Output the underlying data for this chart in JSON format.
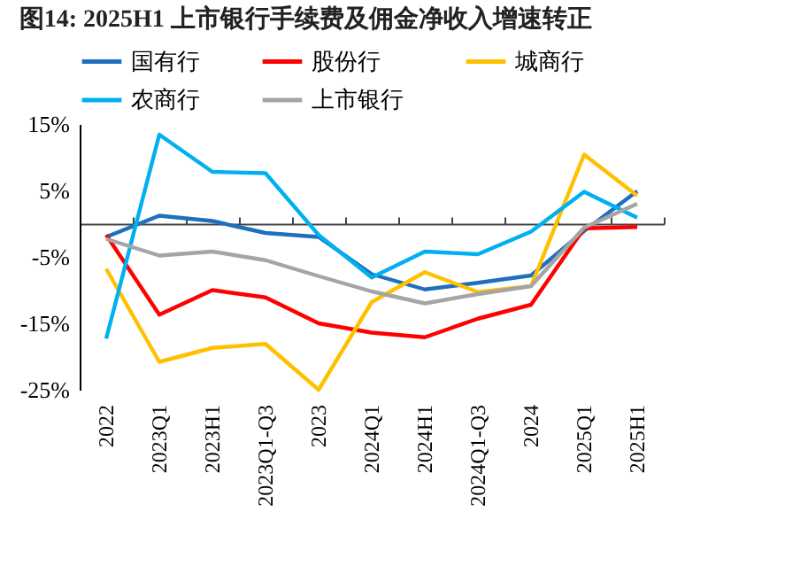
{
  "chart_data": {
    "type": "line",
    "title": "图14:  2025H1 上市银行手续费及佣金净收入增速转正",
    "categories": [
      "2022",
      "2023Q1",
      "2023H1",
      "2023Q1-Q3",
      "2023",
      "2024Q1",
      "2024H1",
      "2024Q1-Q3",
      "2024",
      "2025Q1",
      "2025H1"
    ],
    "series": [
      {
        "name": "国有行",
        "color": "#1f6fbf",
        "values": [
          -2,
          1.2,
          0.4,
          -1.4,
          -2,
          -7.6,
          -9.9,
          -8.9,
          -7.8,
          -1.1,
          4.9
        ]
      },
      {
        "name": "股份行",
        "color": "#ff0000",
        "values": [
          -1.7,
          -13.7,
          -10,
          -11.1,
          -15,
          -16.4,
          -17.1,
          -14.3,
          -12.2,
          -0.7,
          -0.5
        ]
      },
      {
        "name": "城商行",
        "color": "#ffc000",
        "values": [
          -6.8,
          -20.8,
          -18.7,
          -18.1,
          -25,
          -11.8,
          -7.3,
          -10.3,
          -9.4,
          10.4,
          4.2
        ]
      },
      {
        "name": "农商行",
        "color": "#00b0f0",
        "values": [
          -17.3,
          13.4,
          7.8,
          7.6,
          -1.7,
          -8.1,
          -4.2,
          -4.6,
          -1.2,
          4.8,
          0.9
        ]
      },
      {
        "name": "上市银行",
        "color": "#a5a5a5",
        "values": [
          -2.3,
          -4.8,
          -4.2,
          -5.5,
          -7.9,
          -10.2,
          -12,
          -10.6,
          -9.4,
          -0.6,
          3
        ]
      }
    ],
    "ylim": [
      -25,
      15
    ],
    "yticks": [
      {
        "value": 15,
        "label": "15%"
      },
      {
        "value": 5,
        "label": "5%"
      },
      {
        "value": -5,
        "label": "-5%"
      },
      {
        "value": -15,
        "label": "-15%"
      },
      {
        "value": -25,
        "label": "-25%"
      }
    ],
    "grid": false,
    "legend": "top"
  }
}
